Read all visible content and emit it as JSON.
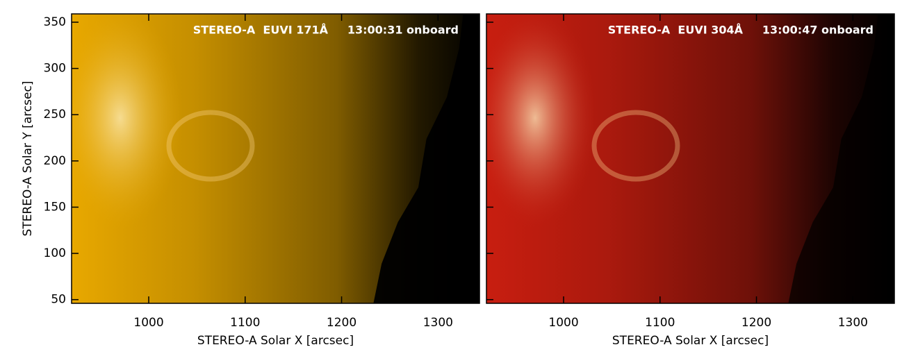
{
  "chart_data": [
    {
      "type": "image",
      "annotation": "STEREO-A  EUVI 171Å     13:00:31 onboard",
      "xlabel": "STEREO-A Solar X [arcsec]",
      "ylabel": "STEREO-A Solar Y [arcsec]",
      "color": "#e8a800",
      "xlim": [
        920,
        1343
      ],
      "ylim": [
        46,
        359
      ],
      "xticks": [
        1000,
        1100,
        1200,
        1300
      ],
      "yticks": [
        50,
        100,
        150,
        200,
        250,
        300,
        350
      ],
      "ytick_labels": true
    },
    {
      "type": "image",
      "annotation": "STEREO-A  EUVI 304Å     13:00:47 onboard",
      "xlabel": "STEREO-A Solar X [arcsec]",
      "color": "#c81e10",
      "xlim": [
        920,
        1343
      ],
      "ylim": [
        46,
        359
      ],
      "xticks": [
        1000,
        1100,
        1200,
        1300
      ],
      "yticks": [
        50,
        100,
        150,
        200,
        250,
        300,
        350
      ],
      "ytick_labels": false
    }
  ]
}
